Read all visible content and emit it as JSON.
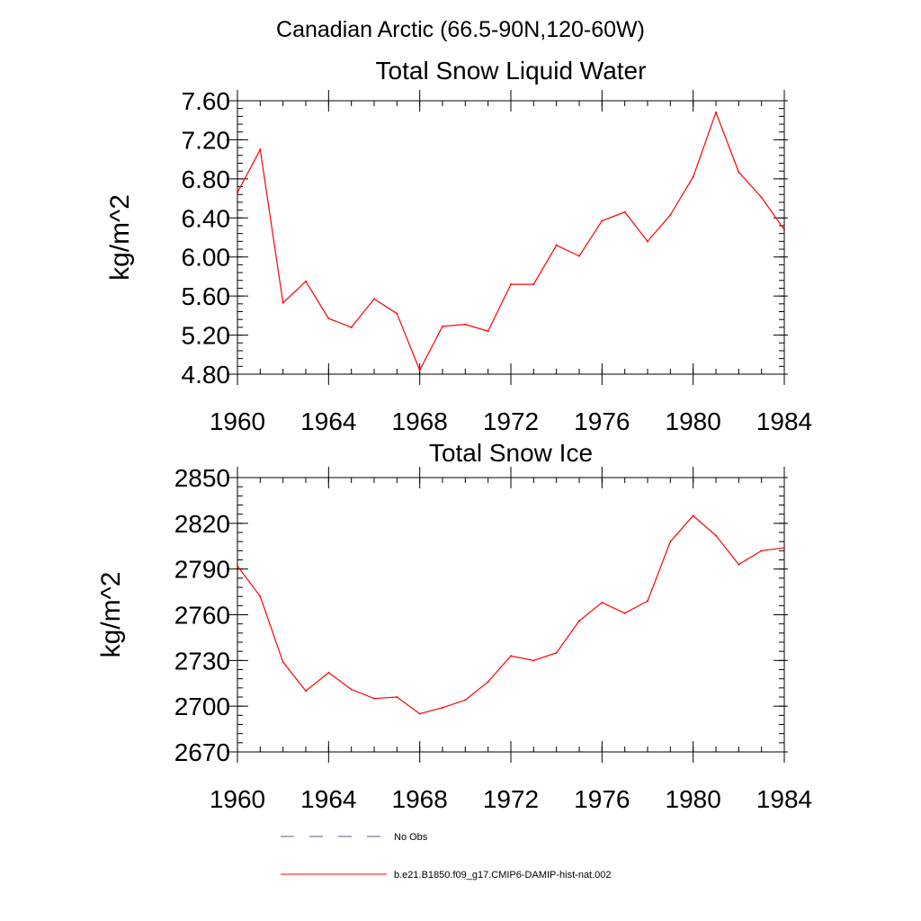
{
  "figure": {
    "title": "Canadian Arctic (66.5-90N,120-60W)"
  },
  "chart_data": [
    {
      "type": "line",
      "title": "Total Snow Liquid Water",
      "xlabel": "",
      "ylabel": "kg/m^2",
      "xlim": [
        1960,
        1984
      ],
      "ylim": [
        4.8,
        7.6
      ],
      "xticks": [
        1960,
        1964,
        1968,
        1972,
        1976,
        1980,
        1984
      ],
      "yticks": [
        "4.80",
        "5.20",
        "5.60",
        "6.00",
        "6.40",
        "6.80",
        "7.20",
        "7.60"
      ],
      "yminor_step": 0.08,
      "x": [
        1960,
        1961,
        1962,
        1963,
        1964,
        1965,
        1966,
        1967,
        1968,
        1969,
        1970,
        1971,
        1972,
        1973,
        1974,
        1975,
        1976,
        1977,
        1978,
        1979,
        1980,
        1981,
        1982,
        1983,
        1984
      ],
      "series": [
        {
          "name": "b.e21.B1850.f09_g17.CMIP6-DAMIP-hist-nat.002",
          "color": "#ff0000",
          "values": [
            6.66,
            7.1,
            5.53,
            5.75,
            5.37,
            5.28,
            5.57,
            5.42,
            4.84,
            5.29,
            5.31,
            5.24,
            5.72,
            5.72,
            6.12,
            6.01,
            6.37,
            6.46,
            6.16,
            6.43,
            6.82,
            7.48,
            6.87,
            6.61,
            6.28
          ]
        }
      ]
    },
    {
      "type": "line",
      "title": "Total Snow Ice",
      "xlabel": "",
      "ylabel": "kg/m^2",
      "xlim": [
        1960,
        1984
      ],
      "ylim": [
        2670,
        2850
      ],
      "xticks": [
        1960,
        1964,
        1968,
        1972,
        1976,
        1980,
        1984
      ],
      "yticks": [
        "2670",
        "2700",
        "2730",
        "2760",
        "2790",
        "2820",
        "2850"
      ],
      "yminor_step": 6,
      "x": [
        1960,
        1961,
        1962,
        1963,
        1964,
        1965,
        1966,
        1967,
        1968,
        1969,
        1970,
        1971,
        1972,
        1973,
        1974,
        1975,
        1976,
        1977,
        1978,
        1979,
        1980,
        1981,
        1982,
        1983,
        1984
      ],
      "series": [
        {
          "name": "b.e21.B1850.f09_g17.CMIP6-DAMIP-hist-nat.002",
          "color": "#ff0000",
          "values": [
            2792,
            2772,
            2729,
            2710,
            2722,
            2711,
            2705,
            2706,
            2695,
            2699,
            2704,
            2716,
            2733,
            2730,
            2735,
            2756,
            2768,
            2761,
            2769,
            2808,
            2825,
            2812,
            2793,
            2802,
            2804
          ]
        }
      ]
    }
  ],
  "legend": {
    "items": [
      {
        "label": "No Obs",
        "style": "dashed",
        "color": "#5a5a8c"
      },
      {
        "label": "b.e21.B1850.f09_g17.CMIP6-DAMIP-hist-nat.002",
        "style": "solid",
        "color": "#ff0000"
      }
    ]
  }
}
